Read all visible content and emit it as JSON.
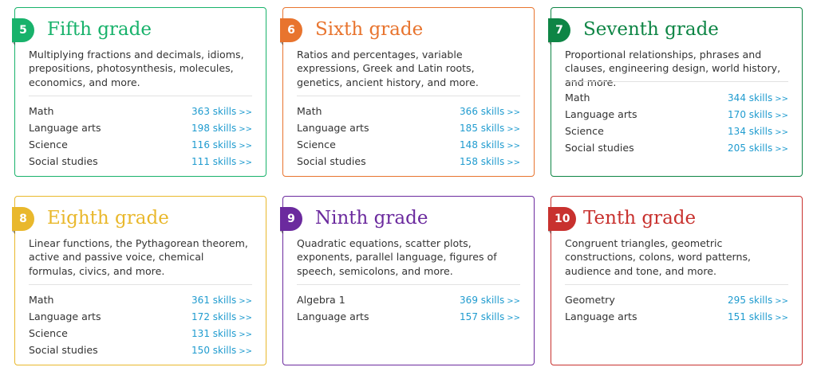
{
  "grades": [
    {
      "number": "5",
      "title": "Fifth grade",
      "color": "#18b26b",
      "description": "Multiplying fractions and decimals, idioms, prepositions, photosynthesis, molecules, economics, and more.",
      "subjects": [
        {
          "name": "Math",
          "skills": "363 skills"
        },
        {
          "name": "Language arts",
          "skills": "198 skills"
        },
        {
          "name": "Science",
          "skills": "116 skills"
        },
        {
          "name": "Social studies",
          "skills": "111 skills"
        }
      ]
    },
    {
      "number": "6",
      "title": "Sixth grade",
      "color": "#e8742e",
      "description": "Ratios and percentages, variable expressions, Greek and Latin roots, genetics, ancient history, and more.",
      "subjects": [
        {
          "name": "Math",
          "skills": "366 skills"
        },
        {
          "name": "Language arts",
          "skills": "185 skills"
        },
        {
          "name": "Science",
          "skills": "148 skills"
        },
        {
          "name": "Social studies",
          "skills": "158 skills"
        }
      ]
    },
    {
      "number": "7",
      "title": "Seventh grade",
      "color": "#0e8545",
      "description": "Proportional relationships, phrases and clauses, engineering design, world history, and more.",
      "subjects": [
        {
          "name": "Math",
          "skills": "344 skills"
        },
        {
          "name": "Language arts",
          "skills": "170 skills"
        },
        {
          "name": "Science",
          "skills": "134 skills"
        },
        {
          "name": "Social studies",
          "skills": "205 skills"
        }
      ]
    },
    {
      "number": "8",
      "title": "Eighth grade",
      "color": "#e9b82c",
      "description": "Linear functions, the Pythagorean theorem, active and passive voice, chemical formulas, civics, and more.",
      "subjects": [
        {
          "name": "Math",
          "skills": "361 skills"
        },
        {
          "name": "Language arts",
          "skills": "172 skills"
        },
        {
          "name": "Science",
          "skills": "131 skills"
        },
        {
          "name": "Social studies",
          "skills": "150 skills"
        }
      ]
    },
    {
      "number": "9",
      "title": "Ninth grade",
      "color": "#6b2a9e",
      "description": "Quadratic equations, scatter plots, exponents, parallel language, figures of speech, semicolons, and more.",
      "subjects": [
        {
          "name": "Algebra 1",
          "skills": "369 skills"
        },
        {
          "name": "Language arts",
          "skills": "157 skills"
        }
      ]
    },
    {
      "number": "10",
      "title": "Tenth grade",
      "color": "#c8312e",
      "description": "Congruent triangles, geometric constructions, colons, word patterns, audience and tone, and more.",
      "subjects": [
        {
          "name": "Geometry",
          "skills": "295 skills"
        },
        {
          "name": "Language arts",
          "skills": "151 skills"
        }
      ]
    }
  ],
  "arrow": ">>"
}
